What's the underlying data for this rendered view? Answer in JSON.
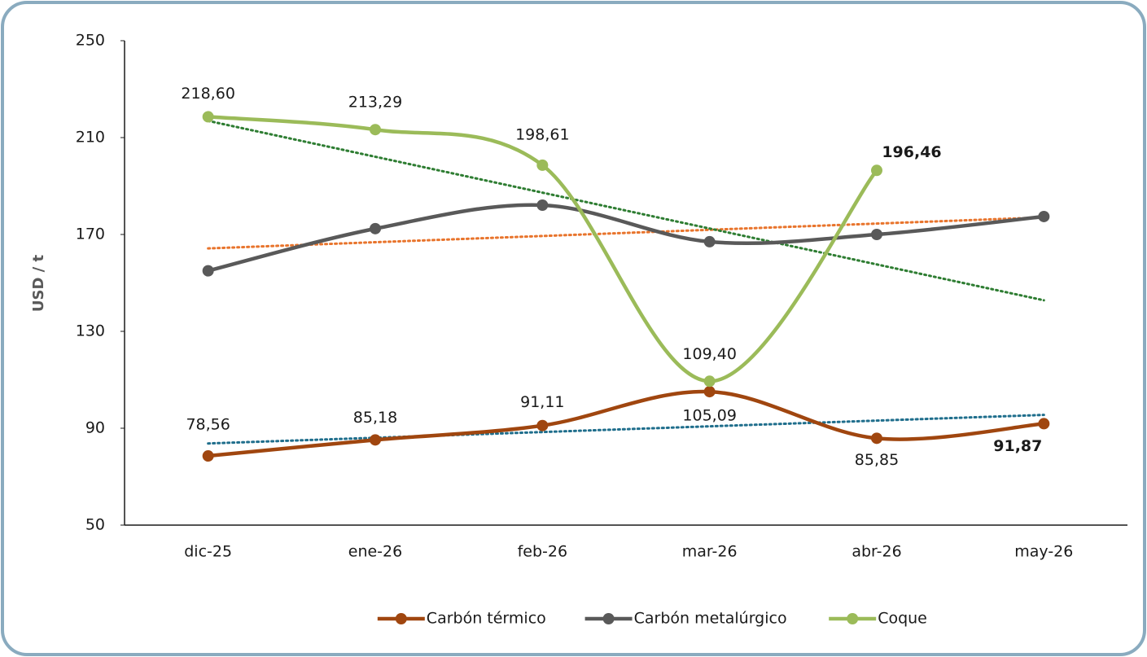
{
  "chart_data": {
    "type": "line",
    "categories": [
      "dic-25",
      "ene-26",
      "feb-26",
      "mar-26",
      "abr-26",
      "may-26"
    ],
    "y_label": "USD / t",
    "ylim": [
      50,
      250
    ],
    "yticks": [
      50,
      90,
      130,
      170,
      210,
      250
    ],
    "grid": false,
    "legend": "bottom",
    "smooth": true,
    "series": [
      {
        "name": "Carbón térmico",
        "color": "#a0460f",
        "trend_color": "#1f6e8c",
        "values": [
          78.56,
          85.18,
          91.11,
          105.09,
          85.85,
          91.87
        ],
        "value_labels": [
          "78,56",
          "85,18",
          "91,11",
          "105,09",
          "85,85",
          "91,87"
        ]
      },
      {
        "name": "Carbón metalúrgico",
        "color": "#595959",
        "trend_color": "#e8742c",
        "values": [
          155,
          172.4,
          182.1,
          167,
          170,
          177.4
        ]
      },
      {
        "name": "Coque",
        "color": "#9bbb59",
        "trend_color": "#2e7d32",
        "values": [
          218.6,
          213.29,
          198.61,
          109.4,
          196.46,
          null
        ],
        "value_labels": [
          "218,60",
          "213,29",
          "198,61",
          "109,40",
          "196,46",
          null
        ]
      }
    ]
  }
}
